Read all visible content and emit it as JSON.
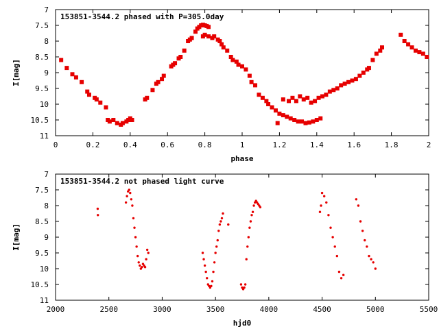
{
  "chart_data": [
    {
      "type": "scatter",
      "title": "153851-3544.2 phased with P=305.0day",
      "xlabel": "phase",
      "ylabel": "I[mag]",
      "xlim": [
        0,
        2
      ],
      "ylim": [
        11,
        7
      ],
      "y_inverted": true,
      "x_ticks": [
        0,
        0.2,
        0.4,
        0.6,
        0.8,
        1,
        1.2,
        1.4,
        1.6,
        1.8,
        2
      ],
      "x_tick_labels": [
        "0",
        "0.2",
        "0.4",
        "0.6",
        "0.8",
        "1",
        "1.2",
        "1.4",
        "1.6",
        "1.8",
        "2"
      ],
      "y_ticks": [
        7,
        7.5,
        8,
        8.5,
        9,
        9.5,
        10,
        10.5,
        11
      ],
      "y_tick_labels": [
        "7",
        "7.5",
        "8",
        "8.5",
        "9",
        "9.5",
        "10",
        "10.5",
        "11"
      ],
      "grid": false,
      "marker_color": "#e60000",
      "series": [
        {
          "x": [
            0.03,
            0.06,
            0.09,
            0.11,
            0.14,
            0.17,
            0.18,
            0.21,
            0.22,
            0.24,
            0.27,
            0.28,
            0.29,
            0.31,
            0.33,
            0.35,
            0.36,
            0.38,
            0.39,
            0.4,
            0.41,
            0.48,
            0.49,
            0.52,
            0.54,
            0.55,
            0.57,
            0.58,
            0.62,
            0.63,
            0.64,
            0.66,
            0.67,
            0.69,
            0.71,
            0.72,
            0.73,
            0.75,
            0.76,
            0.77,
            0.78,
            0.79,
            0.8,
            0.81,
            0.82,
            0.79,
            0.8,
            0.82,
            0.84,
            0.85,
            0.87,
            0.88,
            0.89,
            0.9,
            0.92,
            0.94,
            0.95,
            0.97,
            0.98,
            1.0,
            1.02,
            1.04,
            1.05,
            1.07,
            1.09,
            1.11,
            1.13,
            1.14,
            1.16,
            1.18,
            1.2,
            1.22,
            1.24,
            1.26,
            1.28,
            1.3,
            1.32,
            1.34,
            1.36,
            1.38,
            1.4,
            1.42,
            1.19,
            1.22,
            1.25,
            1.27,
            1.29,
            1.31,
            1.33,
            1.35,
            1.37,
            1.39,
            1.41,
            1.43,
            1.45,
            1.47,
            1.49,
            1.51,
            1.53,
            1.55,
            1.57,
            1.59,
            1.61,
            1.63,
            1.65,
            1.67,
            1.68,
            1.7,
            1.72,
            1.74,
            1.75,
            1.85,
            1.87,
            1.89,
            1.91,
            1.93,
            1.95,
            1.97,
            1.99
          ],
          "y": [
            8.6,
            8.85,
            9.05,
            9.15,
            9.3,
            9.6,
            9.7,
            9.8,
            9.85,
            9.95,
            10.1,
            10.5,
            10.55,
            10.5,
            10.6,
            10.65,
            10.6,
            10.55,
            10.5,
            10.45,
            10.5,
            9.85,
            9.8,
            9.55,
            9.35,
            9.3,
            9.2,
            9.1,
            8.8,
            8.75,
            8.7,
            8.55,
            8.5,
            8.3,
            8.0,
            7.95,
            7.9,
            7.7,
            7.6,
            7.55,
            7.5,
            7.48,
            7.5,
            7.52,
            7.55,
            7.85,
            7.8,
            7.85,
            7.9,
            7.85,
            7.95,
            8.0,
            8.1,
            8.2,
            8.3,
            8.5,
            8.6,
            8.65,
            8.75,
            8.8,
            8.9,
            9.1,
            9.3,
            9.4,
            9.7,
            9.8,
            9.9,
            10.0,
            10.1,
            10.2,
            10.3,
            10.35,
            10.4,
            10.45,
            10.5,
            10.55,
            10.55,
            10.6,
            10.58,
            10.55,
            10.5,
            10.45,
            10.6,
            9.85,
            9.9,
            9.8,
            9.9,
            9.75,
            9.85,
            9.8,
            9.95,
            9.9,
            9.8,
            9.75,
            9.7,
            9.6,
            9.55,
            9.5,
            9.4,
            9.35,
            9.3,
            9.25,
            9.2,
            9.1,
            9.0,
            8.9,
            8.85,
            8.6,
            8.4,
            8.3,
            8.2,
            7.8,
            8.0,
            8.1,
            8.2,
            8.3,
            8.35,
            8.4,
            8.5
          ]
        }
      ]
    },
    {
      "type": "scatter",
      "title": "153851-3544.2 not phased light curve",
      "xlabel": "hjd0",
      "ylabel": "I[mag]",
      "xlim": [
        2000,
        5500
      ],
      "ylim": [
        11,
        7
      ],
      "y_inverted": true,
      "x_ticks": [
        2000,
        2500,
        3000,
        3500,
        4000,
        4500,
        5000,
        5500
      ],
      "x_tick_labels": [
        "2000",
        "2500",
        "3000",
        "3500",
        "4000",
        "4500",
        "5000",
        "5500"
      ],
      "y_ticks": [
        7,
        7.5,
        8,
        8.5,
        9,
        9.5,
        10,
        10.5,
        11
      ],
      "y_tick_labels": [
        "7",
        "7.5",
        "8",
        "8.5",
        "9",
        "9.5",
        "10",
        "10.5",
        "11"
      ],
      "grid": false,
      "marker_color": "#e60000",
      "series": [
        {
          "x": [
            2395,
            2397,
            2660,
            2670,
            2680,
            2690,
            2700,
            2710,
            2720,
            2730,
            2740,
            2750,
            2760,
            2770,
            2780,
            2790,
            2800,
            2810,
            2820,
            2830,
            2840,
            2850,
            2860,
            2870,
            3380,
            3390,
            3400,
            3410,
            3420,
            3430,
            3440,
            3450,
            3460,
            3470,
            3480,
            3490,
            3500,
            3510,
            3520,
            3530,
            3540,
            3550,
            3560,
            3570,
            3620,
            3740,
            3750,
            3760,
            3770,
            3780,
            3790,
            3800,
            3810,
            3820,
            3830,
            3840,
            3850,
            3860,
            3870,
            3880,
            3890,
            3900,
            3910,
            3920,
            4480,
            4490,
            4500,
            4520,
            4540,
            4560,
            4580,
            4600,
            4620,
            4640,
            4660,
            4680,
            4700,
            4820,
            4840,
            4860,
            4880,
            4900,
            4920,
            4940,
            4960,
            4980,
            5000
          ],
          "y": [
            8.1,
            8.3,
            7.9,
            7.7,
            7.55,
            7.5,
            7.6,
            7.8,
            8.0,
            8.4,
            8.7,
            9.0,
            9.3,
            9.6,
            9.8,
            9.9,
            10.0,
            9.95,
            9.85,
            9.9,
            9.95,
            9.7,
            9.4,
            9.5,
            9.5,
            9.7,
            9.9,
            10.1,
            10.3,
            10.5,
            10.55,
            10.6,
            10.55,
            10.4,
            10.1,
            9.8,
            9.5,
            9.3,
            9.1,
            8.8,
            8.6,
            8.5,
            8.4,
            8.25,
            8.6,
            10.5,
            10.6,
            10.65,
            10.6,
            10.5,
            9.7,
            9.3,
            9.0,
            8.7,
            8.5,
            8.3,
            8.2,
            8.0,
            7.9,
            7.85,
            7.9,
            7.95,
            8.0,
            8.05,
            8.2,
            8.0,
            7.6,
            7.7,
            7.9,
            8.3,
            8.7,
            9.0,
            9.3,
            9.6,
            10.1,
            10.3,
            10.2,
            7.8,
            8.0,
            8.5,
            8.8,
            9.1,
            9.3,
            9.6,
            9.7,
            9.8,
            10.0
          ]
        }
      ]
    }
  ]
}
